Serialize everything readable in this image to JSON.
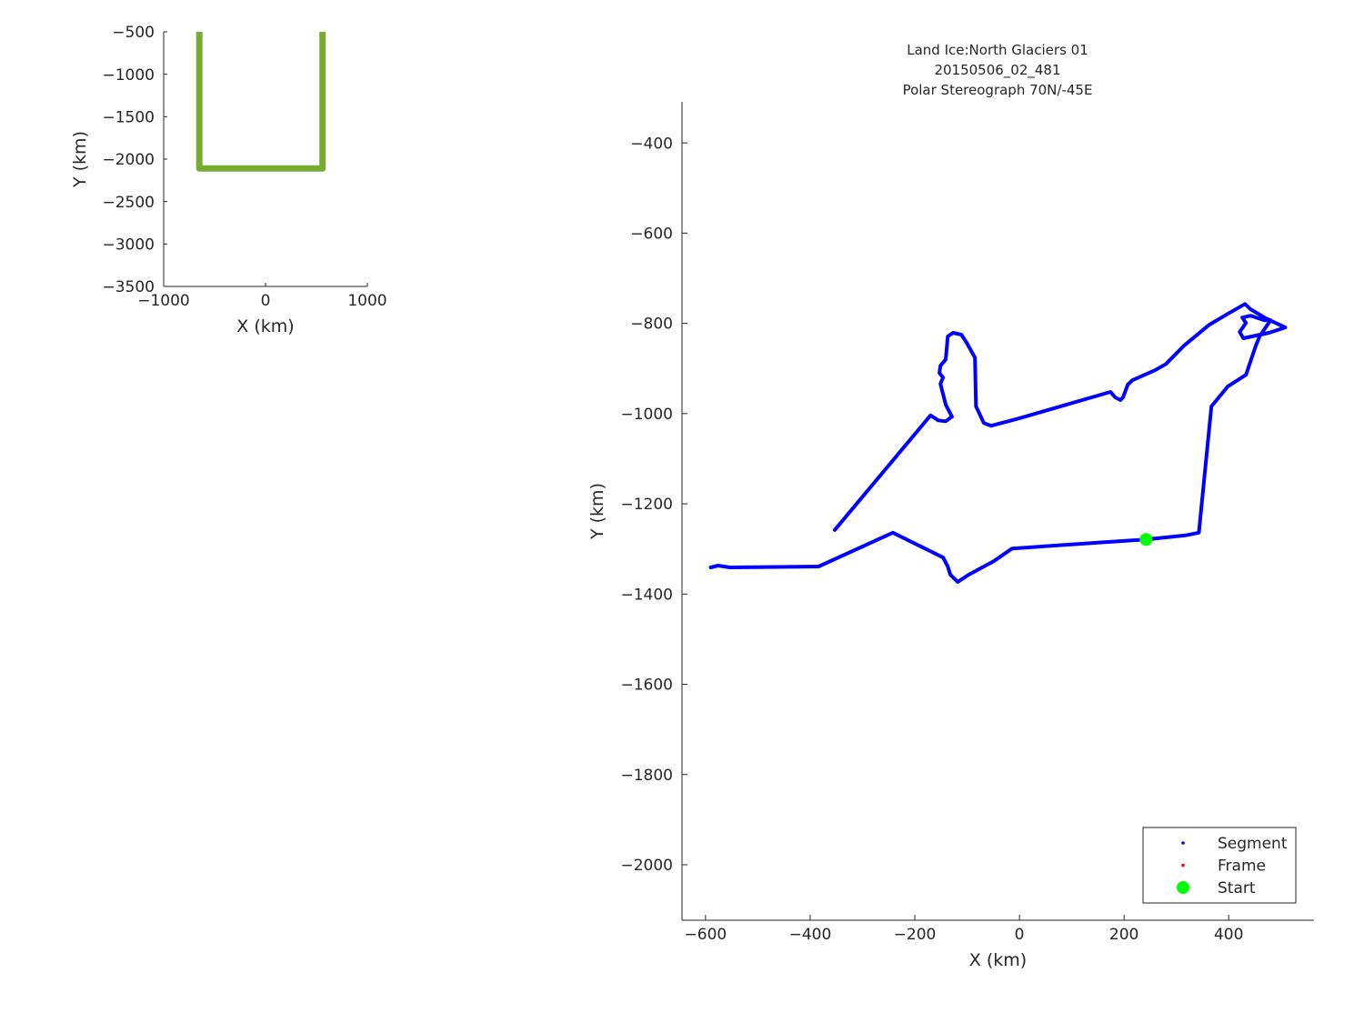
{
  "chart_data": [
    {
      "type": "line",
      "title": "",
      "xlabel": "X (km)",
      "ylabel": "Y (km)",
      "xlim": [
        -1000,
        1000
      ],
      "ylim": [
        -3500,
        -500
      ],
      "xticks": [
        -1000,
        0,
        1000
      ],
      "yticks": [
        -3500,
        -3000,
        -2500,
        -2000,
        -1500,
        -1000,
        -500
      ],
      "grid": false,
      "series": [
        {
          "color": "#77ac30",
          "x": [
            -650,
            -650,
            560,
            560
          ],
          "y": [
            -500,
            -2110,
            -2110,
            -500
          ]
        }
      ]
    },
    {
      "type": "line",
      "title": [
        "Land Ice:North Glaciers 01",
        "20150506_02_481",
        "Polar Stereograph 70N/-45E"
      ],
      "xlabel": "X (km)",
      "ylabel": "Y (km)",
      "xlim": [
        -645,
        563
      ],
      "ylim": [
        -2123,
        -309
      ],
      "xticks": [
        -600,
        -400,
        -200,
        0,
        200,
        400
      ],
      "yticks": [
        -2000,
        -1800,
        -1600,
        -1400,
        -1200,
        -1000,
        -800,
        -600,
        -400
      ],
      "grid": false,
      "legend_position": "bottom-right",
      "legend": [
        {
          "label": "Segment",
          "color": "#0000ff",
          "marker": "dot"
        },
        {
          "label": "Frame",
          "color": "#ff0000",
          "marker": "dot"
        },
        {
          "label": "Start",
          "color": "#00ff00",
          "marker": "x-thick"
        }
      ],
      "series": [
        {
          "name": "Segment",
          "color": "#0000ff",
          "x": [
            -353,
            -170,
            -155,
            -141,
            -129,
            -141,
            -151,
            -146,
            -153,
            -151,
            -141,
            -137,
            -127,
            -111,
            -101,
            -85,
            -83,
            -68,
            -54,
            -2,
            174,
            183,
            193,
            198,
            207,
            216,
            259,
            280,
            315,
            363,
            398,
            431,
            442,
            471,
            508,
            477,
            428,
            421,
            433,
            426,
            442,
            468,
            480,
            459,
            452,
            433,
            398,
            367,
            343,
            317,
            242,
            163,
            -14,
            -49,
            -97,
            -118,
            -132,
            -137,
            -146,
            -242,
            -384,
            -553,
            -576,
            -590
          ],
          "y": [
            -1258,
            -1004,
            -1015,
            -1017,
            -1007,
            -980,
            -934,
            -920,
            -910,
            -894,
            -880,
            -829,
            -821,
            -825,
            -843,
            -876,
            -984,
            -1021,
            -1027,
            -1011,
            -952,
            -964,
            -970,
            -964,
            -936,
            -926,
            -904,
            -890,
            -849,
            -803,
            -779,
            -757,
            -769,
            -789,
            -809,
            -821,
            -833,
            -819,
            -799,
            -787,
            -783,
            -793,
            -793,
            -829,
            -849,
            -914,
            -940,
            -984,
            -1264,
            -1270,
            -1279,
            -1285,
            -1299,
            -1327,
            -1357,
            -1373,
            -1357,
            -1339,
            -1319,
            -1264,
            -1339,
            -1341,
            -1337,
            -1341
          ]
        },
        {
          "name": "Start",
          "color": "#00ff00",
          "x": [
            242
          ],
          "y": [
            -1279
          ]
        }
      ]
    }
  ]
}
